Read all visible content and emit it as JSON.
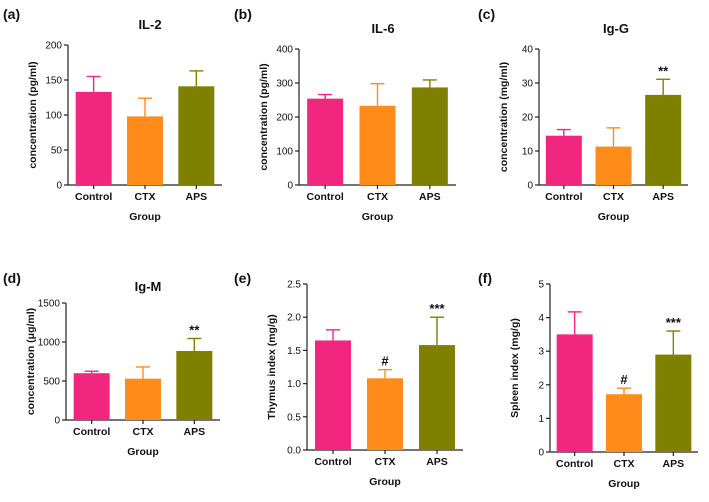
{
  "chart_data": [
    {
      "type": "bar",
      "panel_label": "(a)",
      "title": "IL-2",
      "categories": [
        "Control",
        "CTX",
        "APS"
      ],
      "values": [
        133,
        98,
        141
      ],
      "errors": [
        22,
        26,
        22
      ],
      "annotations": [
        "",
        "",
        ""
      ],
      "colors": [
        "#f0267f",
        "#ff8c1a",
        "#808000"
      ],
      "xlabel": "Group",
      "ylabel": "concentration (pg/ml)",
      "ylim": [
        0,
        200
      ],
      "yticks": [
        0,
        50,
        100,
        150,
        200
      ]
    },
    {
      "type": "bar",
      "panel_label": "(b)",
      "title": "IL-6",
      "categories": [
        "Control",
        "CTX",
        "APS"
      ],
      "values": [
        254,
        233,
        287
      ],
      "errors": [
        12,
        65,
        22
      ],
      "annotations": [
        "",
        "",
        ""
      ],
      "colors": [
        "#f0267f",
        "#ff8c1a",
        "#808000"
      ],
      "xlabel": "Group",
      "ylabel": "concentration (pg/ml)",
      "ylim": [
        0,
        400
      ],
      "yticks": [
        0,
        100,
        200,
        300,
        400
      ]
    },
    {
      "type": "bar",
      "panel_label": "(c)",
      "title": "Ig-G",
      "categories": [
        "Control",
        "CTX",
        "APS"
      ],
      "values": [
        14.5,
        11.3,
        26.5
      ],
      "errors": [
        1.8,
        5.5,
        4.6
      ],
      "annotations": [
        "",
        "",
        "**"
      ],
      "colors": [
        "#f0267f",
        "#ff8c1a",
        "#808000"
      ],
      "xlabel": "Group",
      "ylabel": "concentration (mg/ml)",
      "ylim": [
        0,
        40
      ],
      "yticks": [
        0,
        10,
        20,
        30,
        40
      ]
    },
    {
      "type": "bar",
      "panel_label": "(d)",
      "title": "Ig-M",
      "categories": [
        "Control",
        "CTX",
        "APS"
      ],
      "values": [
        600,
        530,
        885
      ],
      "errors": [
        25,
        150,
        160
      ],
      "annotations": [
        "",
        "",
        "**"
      ],
      "colors": [
        "#f0267f",
        "#ff8c1a",
        "#808000"
      ],
      "xlabel": "Group",
      "ylabel": "concentration (μg/ml)",
      "ylim": [
        0,
        1500
      ],
      "yticks": [
        0,
        500,
        1000,
        1500
      ]
    },
    {
      "type": "bar",
      "panel_label": "(e)",
      "title": "",
      "categories": [
        "Control",
        "CTX",
        "APS"
      ],
      "values": [
        1.65,
        1.08,
        1.58
      ],
      "errors": [
        0.16,
        0.13,
        0.42
      ],
      "annotations": [
        "",
        "#",
        "***"
      ],
      "colors": [
        "#f0267f",
        "#ff8c1a",
        "#808000"
      ],
      "xlabel": "Group",
      "ylabel": "Thymus index (mg/g)",
      "ylim": [
        0,
        2.5
      ],
      "yticks": [
        "0.0",
        "0.5",
        "1.0",
        "1.5",
        "2.0",
        "2.5"
      ]
    },
    {
      "type": "bar",
      "panel_label": "(f)",
      "title": "",
      "categories": [
        "Control",
        "CTX",
        "APS"
      ],
      "values": [
        3.5,
        1.72,
        2.9
      ],
      "errors": [
        0.67,
        0.18,
        0.7
      ],
      "annotations": [
        "",
        "#",
        "***"
      ],
      "colors": [
        "#f0267f",
        "#ff8c1a",
        "#808000"
      ],
      "xlabel": "Group",
      "ylabel": "Spleen index (mg/g)",
      "ylim": [
        0,
        5
      ],
      "yticks": [
        0,
        1,
        2,
        3,
        4,
        5
      ]
    }
  ]
}
